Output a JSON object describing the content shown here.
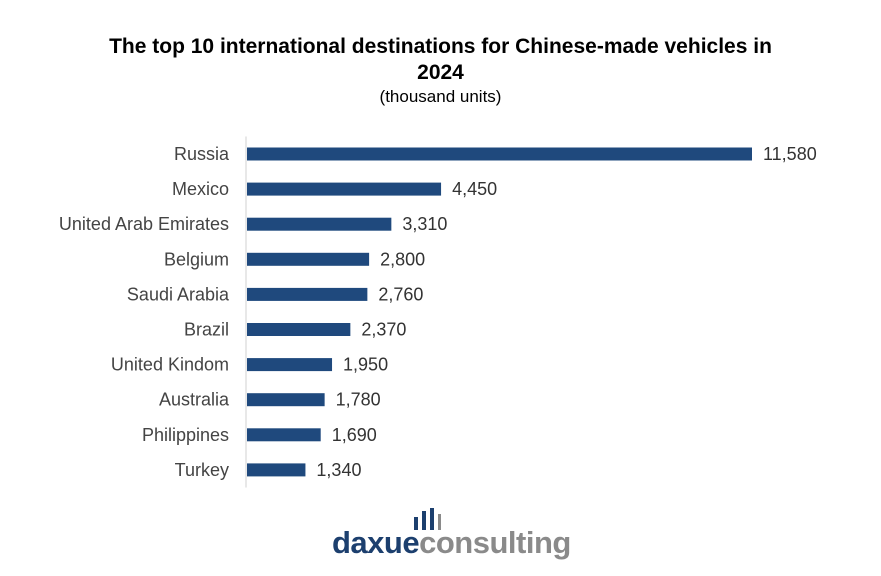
{
  "chart_data": {
    "type": "bar",
    "orientation": "horizontal",
    "title": "The top 10 international destinations for Chinese-made vehicles in 2024",
    "subtitle": "(thousand units)",
    "categories": [
      "Russia",
      "Mexico",
      "United Arab Emirates",
      "Belgium",
      "Saudi Arabia",
      "Brazil",
      "United Kindom",
      "Australia",
      "Philippines",
      "Turkey"
    ],
    "values": [
      11580,
      4450,
      3310,
      2800,
      2760,
      2370,
      1950,
      1780,
      1690,
      1340
    ],
    "value_labels": [
      "11,580",
      "4,450",
      "3,310",
      "2,800",
      "2,760",
      "2,370",
      "1,950",
      "1,780",
      "1,690",
      "1,340"
    ],
    "xlim": [
      0,
      11580
    ],
    "grid": false,
    "legend": "none",
    "bar_color": "#1f497d"
  },
  "logo": {
    "part_a": "daxue",
    "part_b": "consulting",
    "color_a": "#1c3f6e",
    "color_b": "#8a8a8a"
  }
}
